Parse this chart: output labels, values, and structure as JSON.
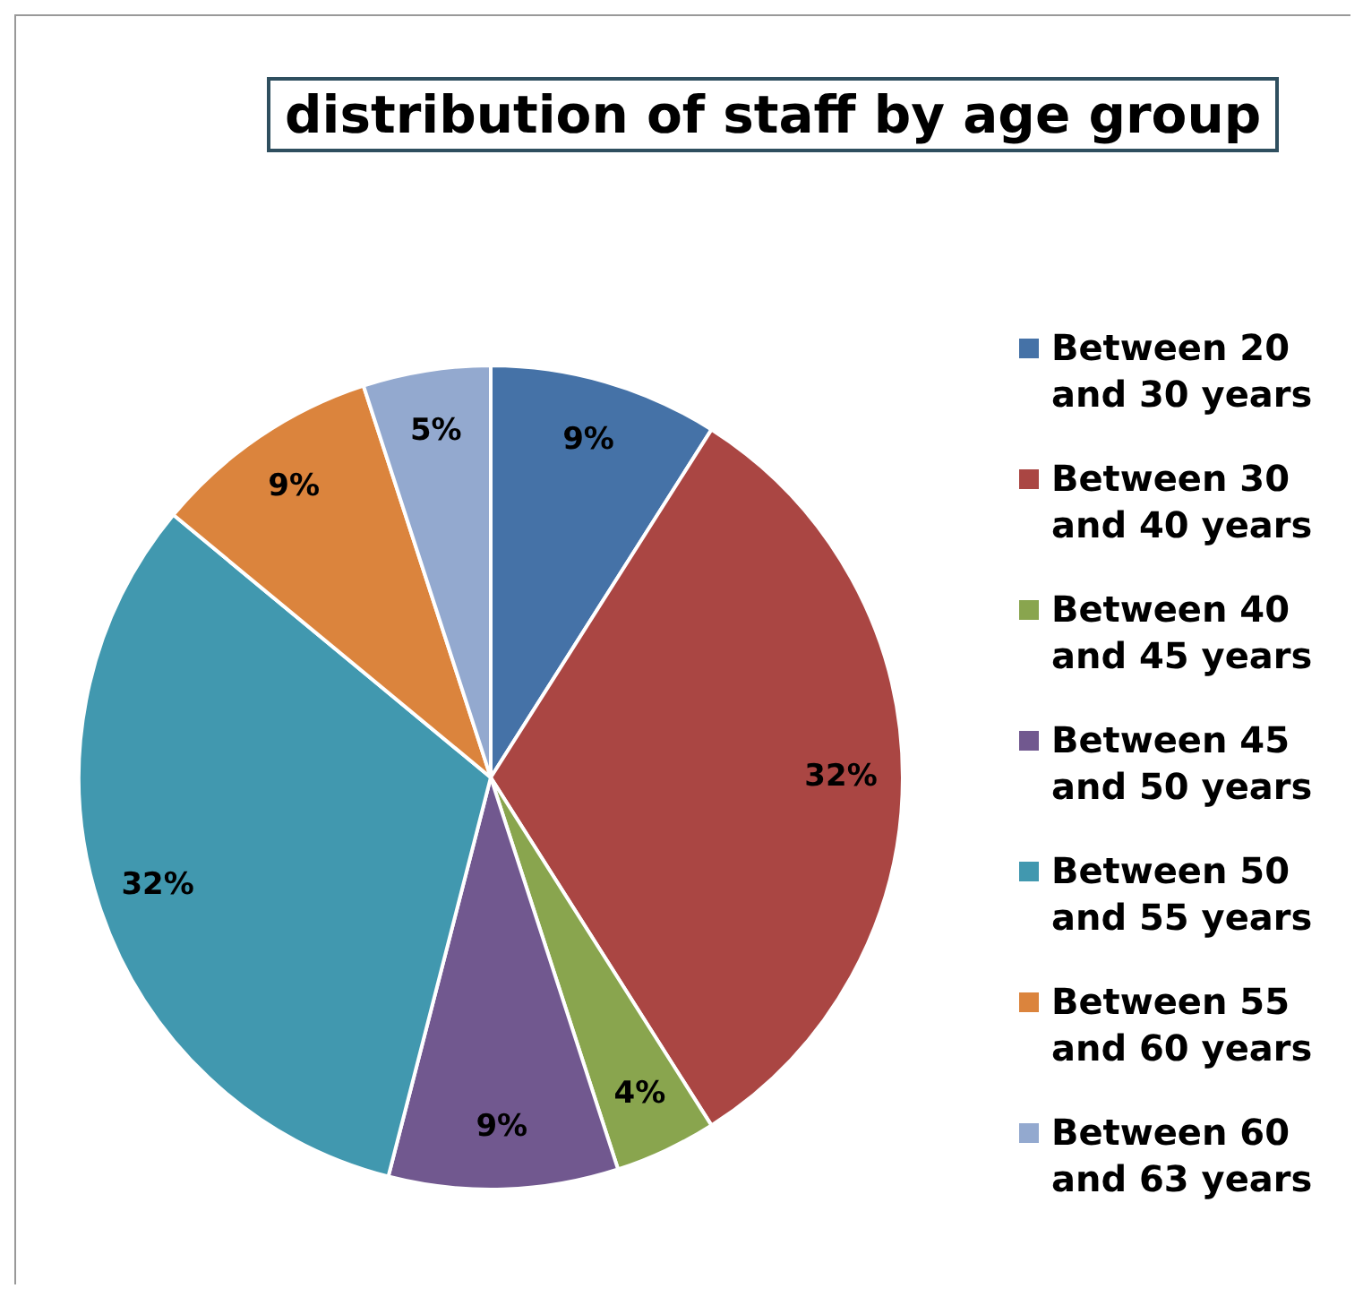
{
  "chart_data": {
    "type": "pie",
    "title": "distribution of staff by age group",
    "categories": [
      "Between 20 and 30 years",
      "Between 30 and 40 years",
      "Between 40 and 45 years",
      "Between 45 and 50 years",
      "Between 50 and 55 years",
      "Between 55 and 60 years",
      "Between 60 and 63 years"
    ],
    "values": [
      9,
      32,
      4,
      9,
      32,
      9,
      5
    ],
    "value_labels": [
      "9%",
      "32%",
      "4%",
      "9%",
      "32%",
      "9%",
      "5%"
    ],
    "colors": [
      "#4572a7",
      "#aa4643",
      "#89a54e",
      "#71588f",
      "#4198af",
      "#db843d",
      "#93a9cf"
    ],
    "legend": "right"
  }
}
